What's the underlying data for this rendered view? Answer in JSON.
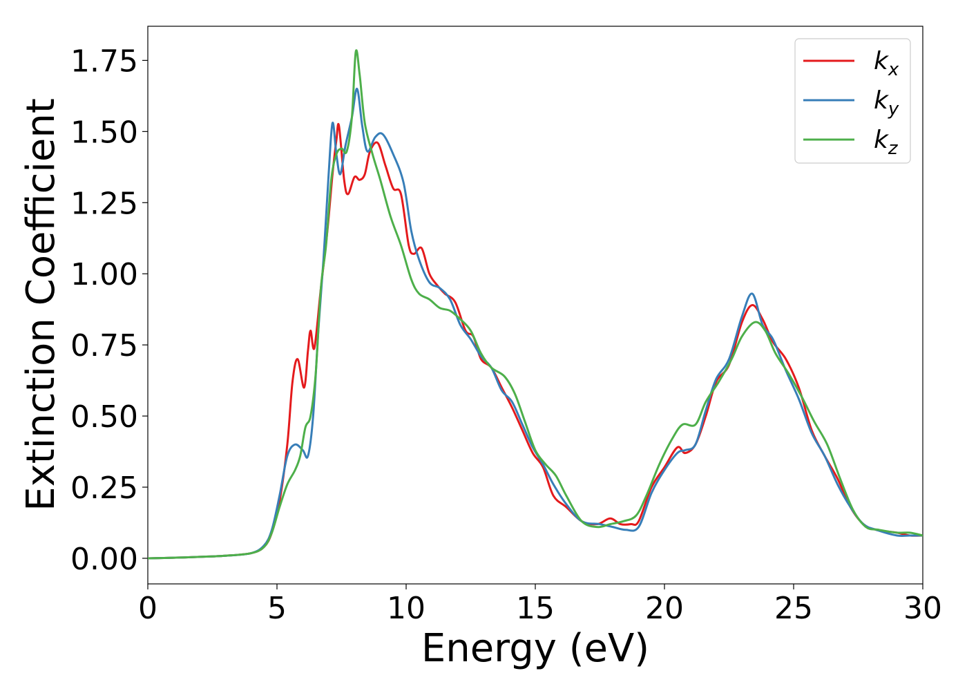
{
  "chart_data": {
    "type": "line",
    "title": "",
    "xlabel": "Energy (eV)",
    "ylabel": "Extinction Coefficient",
    "xlim": [
      0,
      30
    ],
    "ylim": [
      -0.09,
      1.87
    ],
    "xticks": [
      0,
      5,
      10,
      15,
      20,
      25,
      30
    ],
    "xtick_labels": [
      "0",
      "5",
      "10",
      "15",
      "20",
      "25",
      "30"
    ],
    "yticks": [
      0.0,
      0.25,
      0.5,
      0.75,
      1.0,
      1.25,
      1.5,
      1.75
    ],
    "ytick_labels": [
      "0.00",
      "0.25",
      "0.50",
      "0.75",
      "1.00",
      "1.25",
      "1.50",
      "1.75"
    ],
    "grid": false,
    "legend_position": "top-right",
    "series": [
      {
        "name": "k_x",
        "label_base": "k",
        "label_sub": "x",
        "color": "#e41a1c",
        "points": [
          [
            0,
            0.0
          ],
          [
            1,
            0.002
          ],
          [
            2,
            0.005
          ],
          [
            3,
            0.009
          ],
          [
            4,
            0.018
          ],
          [
            4.5,
            0.04
          ],
          [
            4.8,
            0.09
          ],
          [
            5.1,
            0.2
          ],
          [
            5.4,
            0.4
          ],
          [
            5.6,
            0.62
          ],
          [
            5.8,
            0.7
          ],
          [
            6.05,
            0.6
          ],
          [
            6.2,
            0.73
          ],
          [
            6.3,
            0.8
          ],
          [
            6.45,
            0.74
          ],
          [
            6.7,
            0.95
          ],
          [
            6.95,
            1.15
          ],
          [
            7.15,
            1.35
          ],
          [
            7.3,
            1.47
          ],
          [
            7.4,
            1.52
          ],
          [
            7.6,
            1.33
          ],
          [
            7.75,
            1.28
          ],
          [
            8.0,
            1.34
          ],
          [
            8.2,
            1.33
          ],
          [
            8.4,
            1.35
          ],
          [
            8.6,
            1.43
          ],
          [
            8.9,
            1.46
          ],
          [
            9.2,
            1.38
          ],
          [
            9.5,
            1.3
          ],
          [
            9.8,
            1.28
          ],
          [
            10.1,
            1.1
          ],
          [
            10.3,
            1.07
          ],
          [
            10.6,
            1.09
          ],
          [
            10.9,
            1.0
          ],
          [
            11.2,
            0.96
          ],
          [
            11.5,
            0.93
          ],
          [
            11.9,
            0.9
          ],
          [
            12.3,
            0.8
          ],
          [
            12.6,
            0.78
          ],
          [
            12.9,
            0.7
          ],
          [
            13.3,
            0.67
          ],
          [
            13.7,
            0.6
          ],
          [
            14.1,
            0.53
          ],
          [
            14.5,
            0.45
          ],
          [
            14.9,
            0.37
          ],
          [
            15.3,
            0.32
          ],
          [
            15.7,
            0.22
          ],
          [
            16.2,
            0.18
          ],
          [
            16.8,
            0.13
          ],
          [
            17.4,
            0.12
          ],
          [
            17.9,
            0.14
          ],
          [
            18.3,
            0.12
          ],
          [
            18.7,
            0.12
          ],
          [
            19.0,
            0.13
          ],
          [
            19.5,
            0.25
          ],
          [
            20.0,
            0.32
          ],
          [
            20.5,
            0.39
          ],
          [
            20.8,
            0.37
          ],
          [
            21.2,
            0.4
          ],
          [
            21.6,
            0.5
          ],
          [
            22.0,
            0.62
          ],
          [
            22.5,
            0.68
          ],
          [
            23.0,
            0.83
          ],
          [
            23.4,
            0.89
          ],
          [
            23.8,
            0.84
          ],
          [
            24.2,
            0.76
          ],
          [
            24.7,
            0.7
          ],
          [
            25.2,
            0.6
          ],
          [
            25.7,
            0.45
          ],
          [
            26.2,
            0.36
          ],
          [
            26.7,
            0.28
          ],
          [
            27.2,
            0.18
          ],
          [
            27.7,
            0.12
          ],
          [
            28.2,
            0.1
          ],
          [
            29.0,
            0.09
          ],
          [
            29.5,
            0.08
          ],
          [
            30,
            0.08
          ]
        ]
      },
      {
        "name": "k_y",
        "label_base": "k",
        "label_sub": "y",
        "color": "#377eb8",
        "points": [
          [
            0,
            0.0
          ],
          [
            1,
            0.002
          ],
          [
            2,
            0.005
          ],
          [
            3,
            0.009
          ],
          [
            4,
            0.018
          ],
          [
            4.5,
            0.045
          ],
          [
            4.8,
            0.1
          ],
          [
            5.1,
            0.22
          ],
          [
            5.4,
            0.36
          ],
          [
            5.7,
            0.4
          ],
          [
            6.0,
            0.38
          ],
          [
            6.2,
            0.36
          ],
          [
            6.4,
            0.5
          ],
          [
            6.6,
            0.8
          ],
          [
            6.8,
            1.05
          ],
          [
            7.0,
            1.35
          ],
          [
            7.15,
            1.53
          ],
          [
            7.3,
            1.42
          ],
          [
            7.45,
            1.35
          ],
          [
            7.65,
            1.45
          ],
          [
            7.9,
            1.55
          ],
          [
            8.1,
            1.65
          ],
          [
            8.3,
            1.52
          ],
          [
            8.5,
            1.43
          ],
          [
            8.8,
            1.48
          ],
          [
            9.1,
            1.49
          ],
          [
            9.5,
            1.42
          ],
          [
            9.9,
            1.32
          ],
          [
            10.2,
            1.15
          ],
          [
            10.5,
            1.05
          ],
          [
            10.9,
            0.97
          ],
          [
            11.3,
            0.95
          ],
          [
            11.7,
            0.91
          ],
          [
            12.1,
            0.82
          ],
          [
            12.5,
            0.77
          ],
          [
            12.9,
            0.71
          ],
          [
            13.3,
            0.67
          ],
          [
            13.7,
            0.59
          ],
          [
            14.1,
            0.55
          ],
          [
            14.5,
            0.47
          ],
          [
            14.9,
            0.39
          ],
          [
            15.3,
            0.33
          ],
          [
            15.7,
            0.26
          ],
          [
            16.2,
            0.19
          ],
          [
            16.8,
            0.13
          ],
          [
            17.5,
            0.12
          ],
          [
            18.0,
            0.11
          ],
          [
            18.5,
            0.1
          ],
          [
            19.0,
            0.11
          ],
          [
            19.5,
            0.23
          ],
          [
            20.0,
            0.31
          ],
          [
            20.5,
            0.37
          ],
          [
            20.8,
            0.38
          ],
          [
            21.2,
            0.4
          ],
          [
            21.6,
            0.52
          ],
          [
            22.0,
            0.63
          ],
          [
            22.5,
            0.7
          ],
          [
            23.0,
            0.85
          ],
          [
            23.4,
            0.93
          ],
          [
            23.8,
            0.82
          ],
          [
            24.2,
            0.77
          ],
          [
            24.7,
            0.66
          ],
          [
            25.2,
            0.56
          ],
          [
            25.7,
            0.44
          ],
          [
            26.2,
            0.36
          ],
          [
            26.7,
            0.26
          ],
          [
            27.2,
            0.18
          ],
          [
            27.7,
            0.12
          ],
          [
            28.2,
            0.1
          ],
          [
            29.0,
            0.08
          ],
          [
            29.5,
            0.08
          ],
          [
            30,
            0.08
          ]
        ]
      },
      {
        "name": "k_z",
        "label_base": "k",
        "label_sub": "z",
        "color": "#4daf4a",
        "points": [
          [
            0,
            0.0
          ],
          [
            1,
            0.002
          ],
          [
            2,
            0.005
          ],
          [
            3,
            0.009
          ],
          [
            4,
            0.018
          ],
          [
            4.5,
            0.04
          ],
          [
            4.8,
            0.09
          ],
          [
            5.1,
            0.18
          ],
          [
            5.4,
            0.26
          ],
          [
            5.7,
            0.31
          ],
          [
            5.9,
            0.36
          ],
          [
            6.1,
            0.46
          ],
          [
            6.3,
            0.5
          ],
          [
            6.5,
            0.65
          ],
          [
            6.7,
            0.95
          ],
          [
            6.9,
            1.1
          ],
          [
            7.1,
            1.33
          ],
          [
            7.3,
            1.42
          ],
          [
            7.5,
            1.44
          ],
          [
            7.7,
            1.43
          ],
          [
            7.9,
            1.55
          ],
          [
            8.05,
            1.78
          ],
          [
            8.2,
            1.7
          ],
          [
            8.4,
            1.53
          ],
          [
            8.7,
            1.42
          ],
          [
            9.0,
            1.33
          ],
          [
            9.4,
            1.2
          ],
          [
            9.8,
            1.1
          ],
          [
            10.2,
            0.98
          ],
          [
            10.5,
            0.93
          ],
          [
            10.9,
            0.91
          ],
          [
            11.3,
            0.88
          ],
          [
            11.7,
            0.87
          ],
          [
            12.1,
            0.84
          ],
          [
            12.5,
            0.8
          ],
          [
            12.9,
            0.72
          ],
          [
            13.3,
            0.67
          ],
          [
            13.8,
            0.64
          ],
          [
            14.2,
            0.58
          ],
          [
            14.6,
            0.48
          ],
          [
            15.0,
            0.38
          ],
          [
            15.4,
            0.33
          ],
          [
            15.8,
            0.29
          ],
          [
            16.2,
            0.22
          ],
          [
            16.8,
            0.13
          ],
          [
            17.4,
            0.11
          ],
          [
            17.9,
            0.12
          ],
          [
            18.4,
            0.13
          ],
          [
            18.9,
            0.15
          ],
          [
            19.3,
            0.22
          ],
          [
            19.8,
            0.33
          ],
          [
            20.3,
            0.42
          ],
          [
            20.7,
            0.47
          ],
          [
            21.2,
            0.47
          ],
          [
            21.6,
            0.55
          ],
          [
            22.1,
            0.62
          ],
          [
            22.6,
            0.7
          ],
          [
            23.0,
            0.78
          ],
          [
            23.5,
            0.83
          ],
          [
            23.9,
            0.8
          ],
          [
            24.3,
            0.72
          ],
          [
            24.8,
            0.65
          ],
          [
            25.3,
            0.57
          ],
          [
            25.8,
            0.48
          ],
          [
            26.3,
            0.4
          ],
          [
            26.8,
            0.28
          ],
          [
            27.3,
            0.17
          ],
          [
            27.8,
            0.11
          ],
          [
            28.3,
            0.1
          ],
          [
            29.0,
            0.09
          ],
          [
            29.5,
            0.09
          ],
          [
            30,
            0.08
          ]
        ]
      }
    ]
  }
}
